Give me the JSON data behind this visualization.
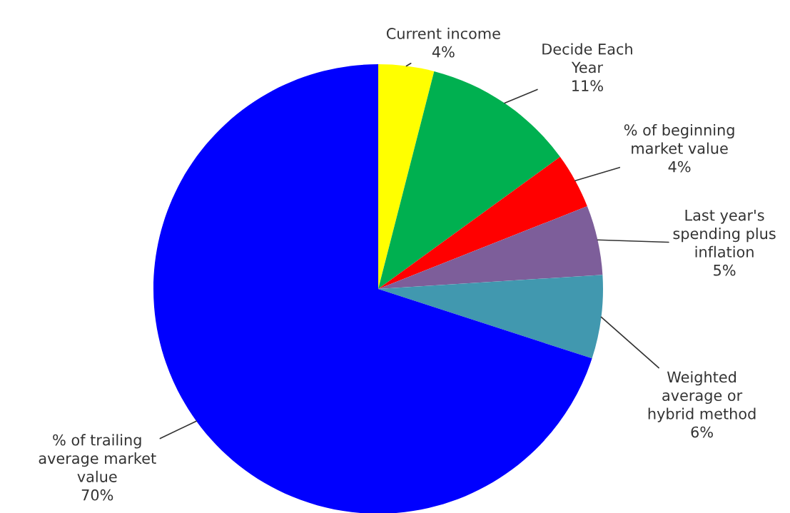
{
  "chart_data": {
    "type": "pie",
    "categories": [
      "Current income",
      "Decide Each\nYear",
      "% of beginning\nmarket value",
      "Last year's\nspending plus\ninflation",
      "Weighted\naverage or\nhybrid method",
      "% of trailing\naverage market\nvalue"
    ],
    "values": [
      4,
      11,
      4,
      5,
      6,
      70
    ],
    "value_labels": [
      "4%",
      "11%",
      "4%",
      "5%",
      "6%",
      "70%"
    ],
    "colors": [
      "#ffff00",
      "#00b050",
      "#ff0000",
      "#7d5e9a",
      "#4198af",
      "#0000ff"
    ],
    "legend": false
  }
}
